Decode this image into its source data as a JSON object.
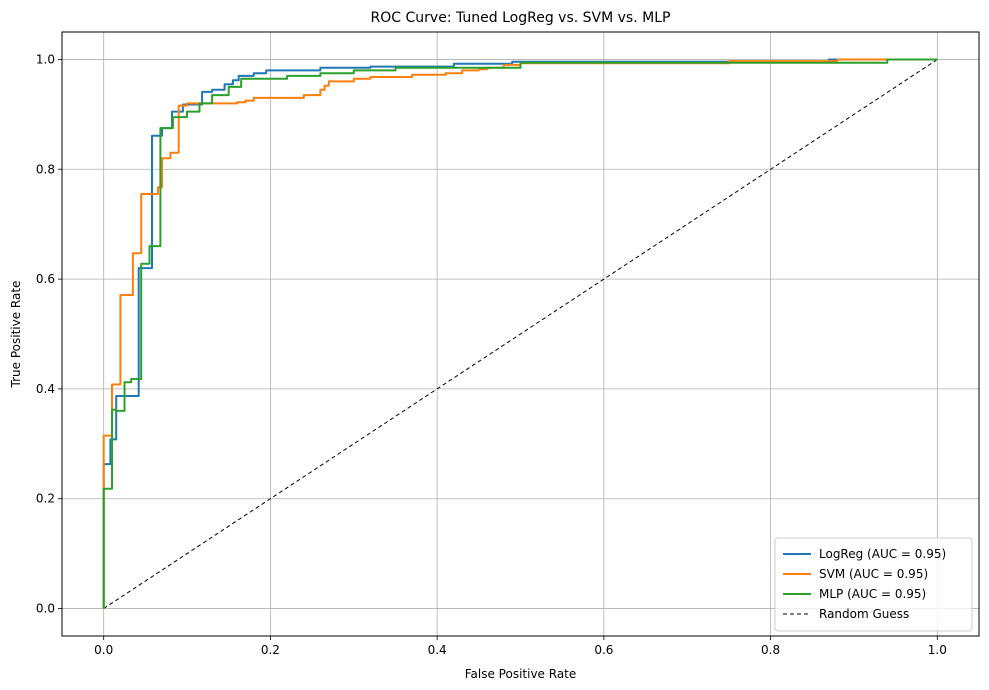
{
  "chart_data": {
    "type": "line",
    "title": "ROC Curve: Tuned LogReg vs. SVM vs. MLP",
    "xlabel": "False Positive Rate",
    "ylabel": "True Positive Rate",
    "xlim": [
      -0.05,
      1.05
    ],
    "ylim": [
      -0.05,
      1.05
    ],
    "xticks": [
      "0.0",
      "0.2",
      "0.4",
      "0.6",
      "0.8",
      "1.0"
    ],
    "yticks": [
      "0.0",
      "0.2",
      "0.4",
      "0.6",
      "0.8",
      "1.0"
    ],
    "grid": true,
    "legend_position": "bottom-right",
    "series": [
      {
        "name": "LogReg (AUC = 0.95)",
        "color": "#1f77b4",
        "style": "solid",
        "x": [
          0.0,
          0.0,
          0.008,
          0.008,
          0.015,
          0.015,
          0.022,
          0.022,
          0.042,
          0.042,
          0.048,
          0.048,
          0.058,
          0.058,
          0.062,
          0.062,
          0.07,
          0.07,
          0.082,
          0.082,
          0.095,
          0.095,
          0.105,
          0.105,
          0.118,
          0.118,
          0.13,
          0.13,
          0.145,
          0.145,
          0.155,
          0.155,
          0.162,
          0.162,
          0.18,
          0.18,
          0.195,
          0.195,
          0.26,
          0.26,
          0.32,
          0.32,
          0.42,
          0.42,
          0.49,
          0.49,
          0.87,
          0.87,
          1.0
        ],
        "y": [
          0.0,
          0.263,
          0.263,
          0.308,
          0.308,
          0.387,
          0.387,
          0.387,
          0.387,
          0.62,
          0.62,
          0.62,
          0.62,
          0.861,
          0.861,
          0.861,
          0.861,
          0.875,
          0.875,
          0.905,
          0.905,
          0.918,
          0.918,
          0.918,
          0.918,
          0.941,
          0.941,
          0.945,
          0.945,
          0.955,
          0.955,
          0.962,
          0.962,
          0.97,
          0.97,
          0.975,
          0.975,
          0.98,
          0.98,
          0.985,
          0.985,
          0.987,
          0.987,
          0.992,
          0.992,
          0.996,
          0.996,
          1.0,
          1.0
        ]
      },
      {
        "name": "SVM (AUC = 0.95)",
        "color": "#ff7f0e",
        "style": "solid",
        "x": [
          0.0,
          0.0,
          0.01,
          0.01,
          0.02,
          0.02,
          0.03,
          0.03,
          0.035,
          0.035,
          0.045,
          0.045,
          0.055,
          0.055,
          0.065,
          0.065,
          0.07,
          0.07,
          0.08,
          0.08,
          0.09,
          0.09,
          0.1,
          0.1,
          0.16,
          0.16,
          0.17,
          0.17,
          0.18,
          0.18,
          0.22,
          0.22,
          0.24,
          0.24,
          0.26,
          0.26,
          0.265,
          0.265,
          0.27,
          0.27,
          0.3,
          0.3,
          0.32,
          0.32,
          0.37,
          0.37,
          0.41,
          0.41,
          0.43,
          0.43,
          0.45,
          0.45,
          0.46,
          0.46,
          0.48,
          0.48,
          0.5,
          0.5,
          0.75,
          0.75,
          0.88,
          0.88,
          1.0
        ],
        "y": [
          0.0,
          0.315,
          0.315,
          0.408,
          0.408,
          0.571,
          0.571,
          0.571,
          0.571,
          0.647,
          0.647,
          0.755,
          0.755,
          0.755,
          0.755,
          0.767,
          0.767,
          0.82,
          0.82,
          0.83,
          0.83,
          0.916,
          0.916,
          0.92,
          0.92,
          0.922,
          0.922,
          0.925,
          0.925,
          0.93,
          0.93,
          0.93,
          0.93,
          0.935,
          0.935,
          0.945,
          0.945,
          0.952,
          0.952,
          0.96,
          0.96,
          0.965,
          0.965,
          0.968,
          0.968,
          0.972,
          0.972,
          0.975,
          0.975,
          0.98,
          0.98,
          0.982,
          0.982,
          0.985,
          0.985,
          0.99,
          0.99,
          0.993,
          0.993,
          0.997,
          0.997,
          1.0,
          1.0
        ]
      },
      {
        "name": "MLP (AUC = 0.95)",
        "color": "#2ca02c",
        "style": "solid",
        "x": [
          0.0,
          0.0,
          0.01,
          0.01,
          0.015,
          0.015,
          0.025,
          0.025,
          0.033,
          0.033,
          0.04,
          0.04,
          0.045,
          0.045,
          0.055,
          0.055,
          0.058,
          0.058,
          0.068,
          0.068,
          0.072,
          0.072,
          0.083,
          0.083,
          0.1,
          0.1,
          0.115,
          0.115,
          0.13,
          0.13,
          0.15,
          0.15,
          0.165,
          0.165,
          0.22,
          0.22,
          0.26,
          0.26,
          0.3,
          0.3,
          0.35,
          0.35,
          0.5,
          0.5,
          0.94,
          0.94,
          1.0
        ],
        "y": [
          0.0,
          0.218,
          0.218,
          0.362,
          0.362,
          0.36,
          0.36,
          0.412,
          0.412,
          0.418,
          0.418,
          0.418,
          0.418,
          0.628,
          0.628,
          0.66,
          0.66,
          0.66,
          0.66,
          0.875,
          0.875,
          0.875,
          0.875,
          0.895,
          0.895,
          0.905,
          0.905,
          0.92,
          0.92,
          0.935,
          0.935,
          0.95,
          0.95,
          0.965,
          0.965,
          0.97,
          0.97,
          0.975,
          0.975,
          0.98,
          0.98,
          0.985,
          0.985,
          0.994,
          0.994,
          1.0,
          1.0
        ]
      },
      {
        "name": "Random Guess",
        "color": "#000000",
        "style": "dashed",
        "x": [
          0.0,
          1.0
        ],
        "y": [
          0.0,
          1.0
        ]
      }
    ]
  }
}
